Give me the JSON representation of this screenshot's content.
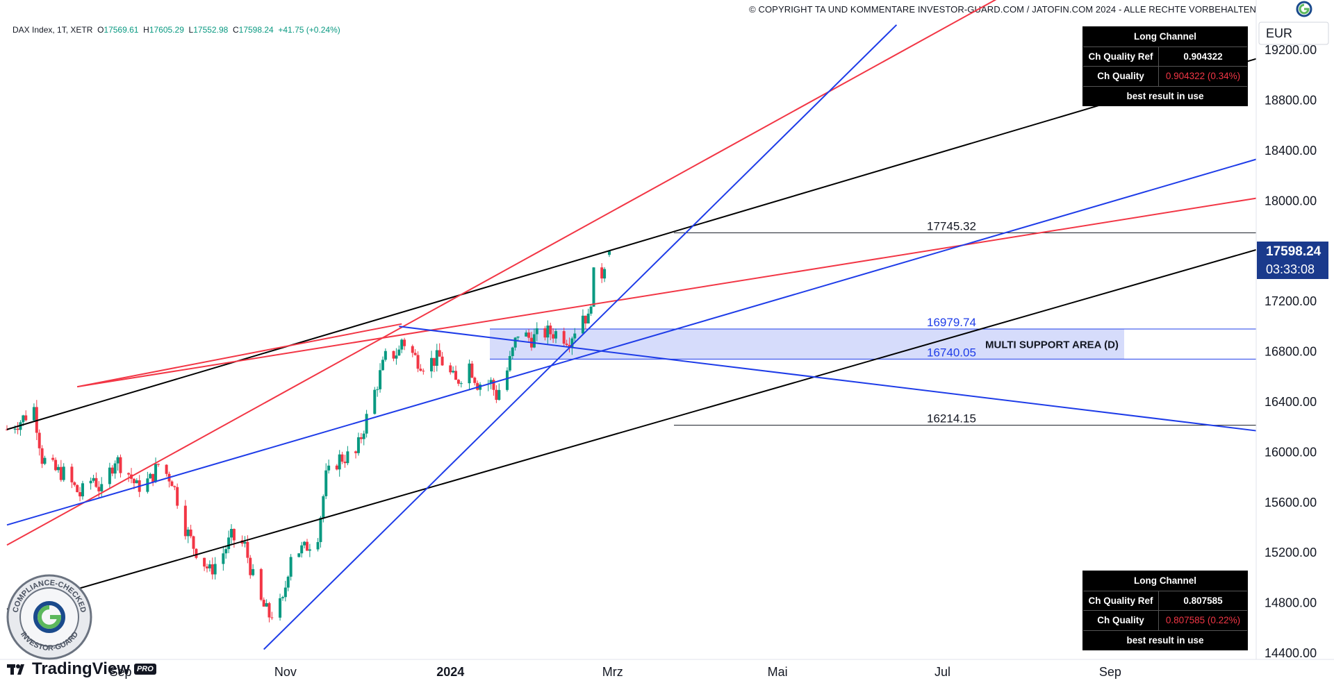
{
  "header": {
    "copyright": "© COPYRIGHT TA UND KOMMENTARE INVESTOR-GUARD.COM / JATOFIN.COM 2024 - ALLE RECHTE VORBEHALTEN",
    "logo_icon": "investor-guard-logo-icon"
  },
  "symbol": {
    "name": "DAX Index, 1T, XETR",
    "open_label": "O",
    "open": "17569.61",
    "high_label": "H",
    "high": "17605.29",
    "low_label": "L",
    "low": "17552.98",
    "close_label": "C",
    "close": "17598.24",
    "change": "+41.75 (+0.24%)"
  },
  "price_axis": {
    "currency": "EUR",
    "last_price": "17598.24",
    "countdown": "03:33:08"
  },
  "tables": [
    {
      "title": "Long Channel",
      "ref_label": "Ch Quality Ref",
      "ref_value": "0.904322",
      "q_label": "Ch Quality",
      "q_value": "0.904322 (0.34%)",
      "footer": "best result in use"
    },
    {
      "title": "Long Channel",
      "ref_label": "Ch Quality Ref",
      "ref_value": "0.807585",
      "q_label": "Ch Quality",
      "q_value": "0.807585 (0.22%)",
      "footer": "best result in use"
    }
  ],
  "annotations": {
    "zone_label": "MULTI SUPPORT AREA (D)",
    "level_top": "17745.32",
    "level_zone_high": "16979.74",
    "level_zone_low": "16740.05",
    "level_bottom": "16214.15"
  },
  "branding": {
    "tradingview": "TradingView",
    "pro": "PRO",
    "seal_top": "COMPLIANCE-CHECKED",
    "seal_bottom": "INVESTOR-GUARD"
  },
  "colors": {
    "up": "#089981",
    "down": "#f23645",
    "black_line": "#000000",
    "red_line": "#f23645",
    "blue_line": "#1e3ce8",
    "zone_fill": "#d6dcfb",
    "label_bg": "#1a3a8c"
  },
  "chart_data": {
    "type": "candlestick",
    "ylim": [
      14400,
      19500
    ],
    "yticks": [
      14400,
      14800,
      15200,
      15600,
      16000,
      16400,
      16800,
      17200,
      17600,
      18000,
      18400,
      18800,
      19200
    ],
    "ytick_labels": [
      "14400.00",
      "14800.00",
      "15200.00",
      "15600.00",
      "16000.00",
      "16400.00",
      "16800.00",
      "17200.00",
      "17600.00",
      "18000.00",
      "18400.00",
      "18800.00",
      "19200.00"
    ],
    "xtick_labels": [
      {
        "label": "Sep",
        "date": "2023-09-01",
        "bold": false
      },
      {
        "label": "Nov",
        "date": "2023-11-01",
        "bold": false
      },
      {
        "label": "2024",
        "date": "2024-01-01",
        "bold": true
      },
      {
        "label": "Mrz",
        "date": "2024-03-01",
        "bold": false
      },
      {
        "label": "Mai",
        "date": "2024-05-01",
        "bold": false
      },
      {
        "label": "Jul",
        "date": "2024-07-01",
        "bold": false
      },
      {
        "label": "Sep",
        "date": "2024-09-01",
        "bold": false
      }
    ],
    "xlim": [
      "2023-07-21",
      "2024-10-25"
    ],
    "close_path": [
      [
        "2023-07-21",
        16180
      ],
      [
        "2023-07-26",
        16250
      ],
      [
        "2023-07-31",
        16350
      ],
      [
        "2023-08-03",
        15950
      ],
      [
        "2023-08-08",
        15850
      ],
      [
        "2023-08-11",
        15830
      ],
      [
        "2023-08-17",
        15660
      ],
      [
        "2023-08-22",
        15800
      ],
      [
        "2023-08-25",
        15680
      ],
      [
        "2023-08-30",
        15950
      ],
      [
        "2023-09-04",
        15830
      ],
      [
        "2023-09-07",
        15720
      ],
      [
        "2023-09-12",
        15780
      ],
      [
        "2023-09-15",
        15900
      ],
      [
        "2023-09-20",
        15780
      ],
      [
        "2023-09-25",
        15400
      ],
      [
        "2023-09-28",
        15250
      ],
      [
        "2023-10-04",
        15050
      ],
      [
        "2023-10-09",
        15200
      ],
      [
        "2023-10-12",
        15320
      ],
      [
        "2023-10-17",
        15250
      ],
      [
        "2023-10-20",
        15000
      ],
      [
        "2023-10-23",
        14800
      ],
      [
        "2023-10-26",
        14700
      ],
      [
        "2023-10-31",
        14800
      ],
      [
        "2023-11-03",
        15200
      ],
      [
        "2023-11-08",
        15230
      ],
      [
        "2023-11-13",
        15350
      ],
      [
        "2023-11-16",
        15800
      ],
      [
        "2023-11-21",
        15950
      ],
      [
        "2023-11-27",
        15980
      ],
      [
        "2023-11-30",
        16200
      ],
      [
        "2023-12-05",
        16550
      ],
      [
        "2023-12-08",
        16750
      ],
      [
        "2023-12-13",
        16800
      ],
      [
        "2023-12-14",
        16900
      ],
      [
        "2023-12-19",
        16750
      ],
      [
        "2023-12-22",
        16700
      ],
      [
        "2023-12-28",
        16750
      ],
      [
        "2024-01-03",
        16550
      ],
      [
        "2024-01-08",
        16700
      ],
      [
        "2024-01-11",
        16550
      ],
      [
        "2024-01-16",
        16550
      ],
      [
        "2024-01-18",
        16450
      ],
      [
        "2024-01-22",
        16650
      ],
      [
        "2024-01-26",
        16950
      ],
      [
        "2024-01-31",
        16900
      ],
      [
        "2024-02-05",
        16950
      ],
      [
        "2024-02-09",
        16950
      ],
      [
        "2024-02-14",
        16900
      ],
      [
        "2024-02-19",
        17100
      ],
      [
        "2024-02-21",
        17050
      ],
      [
        "2024-02-23",
        17400
      ],
      [
        "2024-02-26",
        17420
      ],
      [
        "2024-02-28",
        17600
      ]
    ],
    "horizontal_levels": [
      17745.32,
      16979.74,
      16740.05,
      16214.15
    ],
    "support_zone": {
      "high": 16979.74,
      "low": 16740.05,
      "label": "MULTI SUPPORT AREA (D)"
    },
    "trend_lines": [
      {
        "color": "black",
        "from": [
          "2023-07-21",
          16180
        ],
        "to": [
          "2024-10-25",
          19130
        ]
      },
      {
        "color": "black",
        "from": [
          "2023-07-21",
          14750
        ],
        "to": [
          "2024-10-25",
          17610
        ]
      },
      {
        "color": "red",
        "from": [
          "2023-07-21",
          15260
        ],
        "to": [
          "2024-07-24",
          19640
        ]
      },
      {
        "color": "red",
        "from": [
          "2023-08-16",
          16520
        ],
        "to": [
          "2024-10-25",
          18020
        ]
      },
      {
        "color": "red",
        "from": [
          "2023-12-14",
          17020
        ],
        "to": [
          "2023-08-16",
          16520
        ]
      },
      {
        "color": "blue",
        "from": [
          "2023-07-21",
          15420
        ],
        "to": [
          "2024-10-25",
          18330
        ]
      },
      {
        "color": "blue",
        "from": [
          "2023-12-13",
          17000
        ],
        "to": [
          "2024-10-25",
          16170
        ]
      },
      {
        "color": "blue",
        "from": [
          "2023-10-24",
          14430
        ],
        "to": [
          "2024-06-14",
          19400
        ]
      }
    ]
  }
}
